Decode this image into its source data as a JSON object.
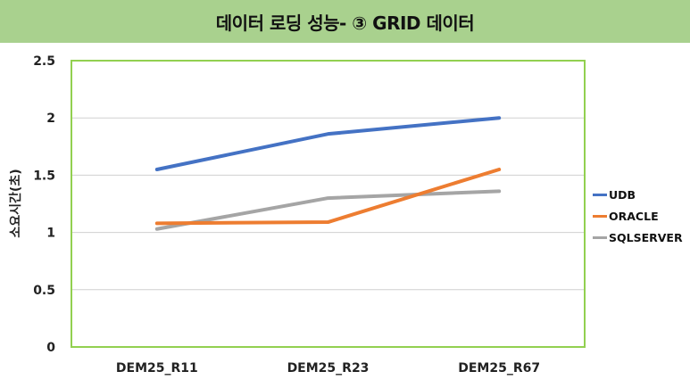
{
  "title": "데이터 로딩 성능- ③ GRID 데이터",
  "colors": {
    "title_bg": "#a9d18e",
    "plot_border": "#92d050",
    "gridline": "#d0d0d0",
    "udb": "#4472c4",
    "oracle": "#ed7d31",
    "sqlserver": "#a5a5a5"
  },
  "legend": [
    {
      "name": "UDB",
      "color": "#4472c4"
    },
    {
      "name": "ORACLE",
      "color": "#ed7d31"
    },
    {
      "name": "SQLSERVER",
      "color": "#a5a5a5"
    }
  ],
  "chart_data": {
    "type": "line",
    "title": "데이터 로딩 성능- ③ GRID 데이터",
    "xlabel": "",
    "ylabel": "소요시간(초)",
    "categories": [
      "DEM25_R11",
      "DEM25_R23",
      "DEM25_R67"
    ],
    "series": [
      {
        "name": "UDB",
        "values": [
          1.55,
          1.86,
          2.0
        ]
      },
      {
        "name": "ORACLE",
        "values": [
          1.08,
          1.09,
          1.55
        ]
      },
      {
        "name": "SQLSERVER",
        "values": [
          1.03,
          1.3,
          1.36
        ]
      }
    ],
    "ylim": [
      0,
      2.5
    ],
    "yticks": [
      "0",
      "0.5",
      "1",
      "1.5",
      "2",
      "2.5"
    ],
    "grid": true,
    "legend_position": "right"
  }
}
